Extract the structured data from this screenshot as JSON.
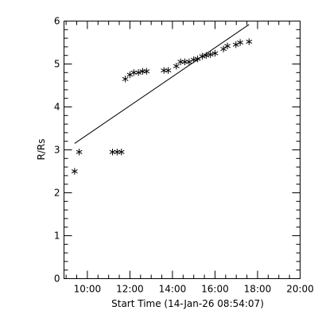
{
  "chart_data": {
    "type": "scatter",
    "xlabel": "Start Time (14-Jan-26 08:54:07)",
    "ylabel": "R/Rs",
    "x_ticks": [
      "10:00",
      "12:00",
      "14:00",
      "16:00",
      "18:00",
      "20:00"
    ],
    "y_ticks": [
      "0",
      "1",
      "2",
      "3",
      "4",
      "5",
      "6"
    ],
    "xlim": [
      "08:54:07",
      "20:00"
    ],
    "ylim": [
      0,
      6
    ],
    "grid": false,
    "marker": "asterisk",
    "color": "#000000",
    "series": [
      {
        "x": [
          "09:24",
          "09:37",
          "11:11",
          "11:24",
          "11:36",
          "11:47",
          "12:00",
          "12:11",
          "12:24",
          "12:36",
          "12:47",
          "13:36",
          "13:48",
          "14:11",
          "14:23",
          "14:35",
          "14:47",
          "15:00",
          "15:11",
          "15:24",
          "15:35",
          "15:47",
          "16:00",
          "16:24",
          "16:35",
          "16:59",
          "17:11",
          "17:36"
        ],
        "y": [
          2.5,
          2.95,
          2.95,
          2.95,
          2.95,
          4.65,
          4.75,
          4.8,
          4.8,
          4.83,
          4.83,
          4.85,
          4.85,
          4.95,
          5.05,
          5.05,
          5.05,
          5.1,
          5.12,
          5.18,
          5.2,
          5.22,
          5.25,
          5.35,
          5.42,
          5.45,
          5.5,
          5.52
        ]
      }
    ],
    "fit_line": {
      "x": [
        "09:24",
        "17:36"
      ],
      "y": [
        3.15,
        5.92
      ]
    }
  }
}
